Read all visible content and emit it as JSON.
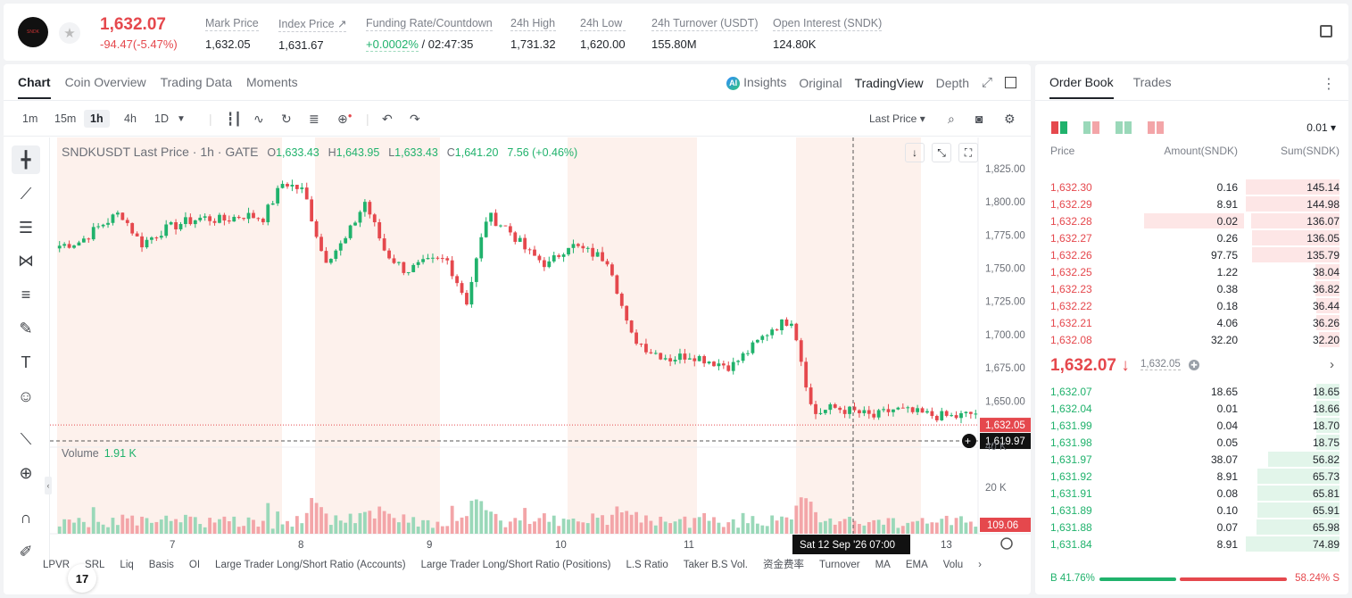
{
  "header": {
    "logo_text": "SNDK",
    "last_price": "1,632.07",
    "change": "-94.47(-5.47%)",
    "stats": [
      {
        "label": "Mark Price",
        "value": "1,632.05"
      },
      {
        "label": "Index Price ↗",
        "value": "1,631.67"
      },
      {
        "label": "Funding Rate/Countdown",
        "value_green": "+0.0002%",
        "value": " / 02:47:35"
      },
      {
        "label": "24h High",
        "value": "1,731.32"
      },
      {
        "label": "24h Low",
        "value": "1,620.00"
      },
      {
        "label": "24h Turnover (USDT)",
        "value": "155.80M"
      },
      {
        "label": "Open Interest (SNDK)",
        "value": "124.80K"
      }
    ]
  },
  "chart_panel": {
    "tabs": [
      "Chart",
      "Coin Overview",
      "Trading Data",
      "Moments"
    ],
    "right_tabs": [
      "Insights",
      "Original",
      "TradingView",
      "Depth"
    ],
    "ai_badge": "AI",
    "timeframes": [
      "1m",
      "15m",
      "1h",
      "4h",
      "1D"
    ],
    "price_type": "Last Price ▾",
    "legend": {
      "symbol": "SNDKUSDT Last Price · 1h · GATE",
      "o": "1,633.43",
      "h": "1,643.95",
      "l": "1,633.43",
      "c": "1,641.20",
      "change": "7.56 (+0.46%)"
    },
    "volume_label": "Volume",
    "volume_value": "1.91 K",
    "price_axis": [
      "1,825.00",
      "1,800.00",
      "1,775.00",
      "1,750.00",
      "1,725.00",
      "1,700.00",
      "1,675.00",
      "1,650.00"
    ],
    "last_price_tag": "1,632.05",
    "crosshair_price_tag": "1,619.97",
    "volume_axis": [
      "40 K",
      "20 K"
    ],
    "volume_last_tag": "109.06",
    "date_axis": [
      "7",
      "8",
      "9",
      "10",
      "11",
      "13"
    ],
    "crosshair_time": "Sat 12 Sep '26   07:00",
    "indicators": [
      "LPVR",
      "SRL",
      "Liq",
      "Basis",
      "OI",
      "Large Trader Long/Short Ratio (Accounts)",
      "Large Trader Long/Short Ratio (Positions)",
      "L.S Ratio",
      "Taker B.S Vol.",
      "资金费率",
      "Turnover",
      "MA",
      "EMA",
      "Volu"
    ],
    "tv_logo": "17",
    "colors": {
      "up": "#20b26c",
      "down": "#e5484d",
      "session_shade": "#fdf1ec"
    }
  },
  "chart_data": {
    "type": "candlestick",
    "x_label": "",
    "y_label": "",
    "ylim": [
      1620,
      1835
    ],
    "x_ticks": [
      "7",
      "8",
      "9",
      "10",
      "11",
      "13"
    ],
    "approx_close_path": [
      1767,
      1770,
      1782,
      1792,
      1768,
      1778,
      1784,
      1788,
      1786,
      1790,
      1788,
      1815,
      1808,
      1756,
      1770,
      1800,
      1762,
      1748,
      1754,
      1757,
      1725,
      1790,
      1780,
      1762,
      1752,
      1768,
      1762,
      1756,
      1700,
      1688,
      1682,
      1685,
      1680,
      1676,
      1690,
      1705,
      1712,
      1640,
      1645,
      1642,
      1638,
      1644,
      1641,
      1639,
      1638,
      1641
    ]
  },
  "order_book": {
    "tabs": [
      "Order Book",
      "Trades"
    ],
    "tick_size": "0.01 ▾",
    "headers": {
      "price": "Price",
      "amount": "Amount(SNDK)",
      "sum": "Sum(SNDK)"
    },
    "asks": [
      {
        "price": "1,632.30",
        "amount": "0.16",
        "sum": "145.14",
        "depth": 1.0
      },
      {
        "price": "1,632.29",
        "amount": "8.91",
        "sum": "144.98",
        "depth": 0.999
      },
      {
        "price": "1,632.28",
        "amount": "0.02",
        "sum": "136.07",
        "depth": 0.94,
        "highlight": true
      },
      {
        "price": "1,632.27",
        "amount": "0.26",
        "sum": "136.05",
        "depth": 0.937
      },
      {
        "price": "1,632.26",
        "amount": "97.75",
        "sum": "135.79",
        "depth": 0.936
      },
      {
        "price": "1,632.25",
        "amount": "1.22",
        "sum": "38.04",
        "depth": 0.262
      },
      {
        "price": "1,632.23",
        "amount": "0.38",
        "sum": "36.82",
        "depth": 0.254
      },
      {
        "price": "1,632.22",
        "amount": "0.18",
        "sum": "36.44",
        "depth": 0.251
      },
      {
        "price": "1,632.21",
        "amount": "4.06",
        "sum": "36.26",
        "depth": 0.25
      },
      {
        "price": "1,632.08",
        "amount": "32.20",
        "sum": "32.20",
        "depth": 0.222
      }
    ],
    "mid_price": "1,632.07 ↓",
    "mid_mark": "1,632.05",
    "bids": [
      {
        "price": "1,632.07",
        "amount": "18.65",
        "sum": "18.65",
        "depth": 0.249
      },
      {
        "price": "1,632.04",
        "amount": "0.01",
        "sum": "18.66",
        "depth": 0.249
      },
      {
        "price": "1,631.99",
        "amount": "0.04",
        "sum": "18.70",
        "depth": 0.25
      },
      {
        "price": "1,631.98",
        "amount": "0.05",
        "sum": "18.75",
        "depth": 0.25
      },
      {
        "price": "1,631.97",
        "amount": "38.07",
        "sum": "56.82",
        "depth": 0.76
      },
      {
        "price": "1,631.92",
        "amount": "8.91",
        "sum": "65.73",
        "depth": 0.879
      },
      {
        "price": "1,631.91",
        "amount": "0.08",
        "sum": "65.81",
        "depth": 0.88
      },
      {
        "price": "1,631.89",
        "amount": "0.10",
        "sum": "65.91",
        "depth": 0.881
      },
      {
        "price": "1,631.88",
        "amount": "0.07",
        "sum": "65.98",
        "depth": 0.882
      },
      {
        "price": "1,631.84",
        "amount": "8.91",
        "sum": "74.89",
        "depth": 1.0
      }
    ],
    "buy_ratio": "B 41.76%",
    "sell_ratio": "58.24% S",
    "buy_fraction": 0.4176
  }
}
